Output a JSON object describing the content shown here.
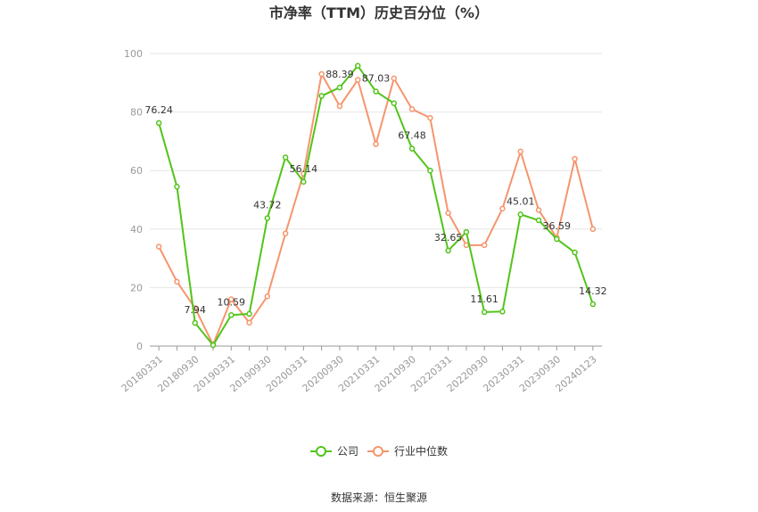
{
  "chart_data": {
    "type": "line",
    "title": "市净率（TTM）历史百分位（%）",
    "ylim": [
      0,
      100
    ],
    "yticks": [
      0,
      20,
      40,
      60,
      80,
      100
    ],
    "x": [
      "20180331",
      "20180630",
      "20180930",
      "20181231",
      "20190331",
      "20190630",
      "20190930",
      "20191231",
      "20200331",
      "20200630",
      "20200930",
      "20201231",
      "20210331",
      "20210630",
      "20210930",
      "20211231",
      "20220331",
      "20220630",
      "20220930",
      "20221231",
      "20230331",
      "20230630",
      "20230930",
      "20231231",
      "20240123"
    ],
    "xtick_labels": [
      "20180331",
      "20180930",
      "20190331",
      "20190930",
      "20200331",
      "20200930",
      "20210331",
      "20210930",
      "20220331",
      "20220930",
      "20230331",
      "20230930",
      "20240123"
    ],
    "grid": true,
    "legend_position": "bottom",
    "series": [
      {
        "name": "公司",
        "color": "#52c41a",
        "values": [
          76.24,
          54.5,
          7.94,
          0.3,
          10.59,
          11.0,
          43.72,
          64.5,
          56.14,
          85.5,
          88.39,
          95.8,
          87.03,
          83.0,
          67.48,
          60.0,
          32.65,
          39.0,
          11.61,
          11.8,
          45.01,
          43.0,
          36.59,
          32.0,
          14.32
        ],
        "labels": [
          "76.24",
          "",
          "7.94",
          "",
          "10.59",
          "",
          "43.72",
          "",
          "56.14",
          "",
          "88.39",
          "",
          "87.03",
          "",
          "67.48",
          "",
          "32.65",
          "",
          "11.61",
          "",
          "45.01",
          "",
          "36.59",
          "",
          "14.32"
        ]
      },
      {
        "name": "行业中位数",
        "color": "#f5956d",
        "values": [
          34.0,
          22.0,
          13.0,
          0.5,
          16.0,
          8.0,
          17.0,
          38.5,
          59.0,
          93.0,
          82.0,
          91.0,
          69.0,
          91.5,
          81.0,
          78.0,
          45.5,
          34.5,
          34.5,
          47.0,
          66.5,
          46.5,
          37.0,
          64.0,
          40.0
        ]
      }
    ]
  },
  "source": "数据来源：恒生聚源"
}
